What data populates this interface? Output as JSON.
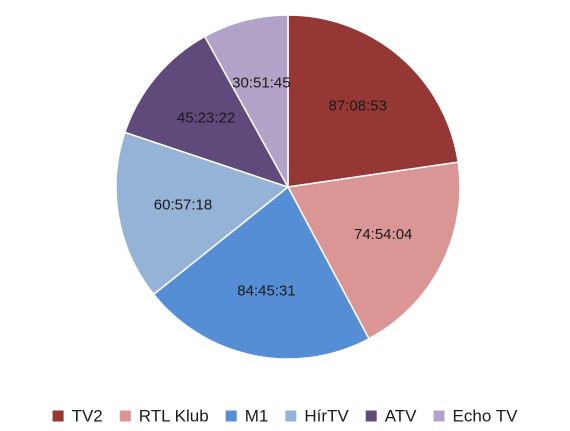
{
  "chart_data": {
    "type": "pie",
    "start_angle_deg": 0,
    "direction": "clockwise",
    "legend_position": "bottom",
    "series": [
      {
        "name": "TV2",
        "label": "87:08:53",
        "value": 87.148,
        "color": "#953735"
      },
      {
        "name": "RTL Klub",
        "label": "74:54:04",
        "value": 74.901,
        "color": "#d99694"
      },
      {
        "name": "M1",
        "label": "84:45:31",
        "value": 84.759,
        "color": "#558ed5"
      },
      {
        "name": "HírTV",
        "label": "60:57:18",
        "value": 60.955,
        "color": "#95b3d7"
      },
      {
        "name": "ATV",
        "label": "45:23:22",
        "value": 45.389,
        "color": "#604a7b"
      },
      {
        "name": "Echo TV",
        "label": "30:51:45",
        "value": 30.863,
        "color": "#b3a2c7"
      }
    ]
  }
}
